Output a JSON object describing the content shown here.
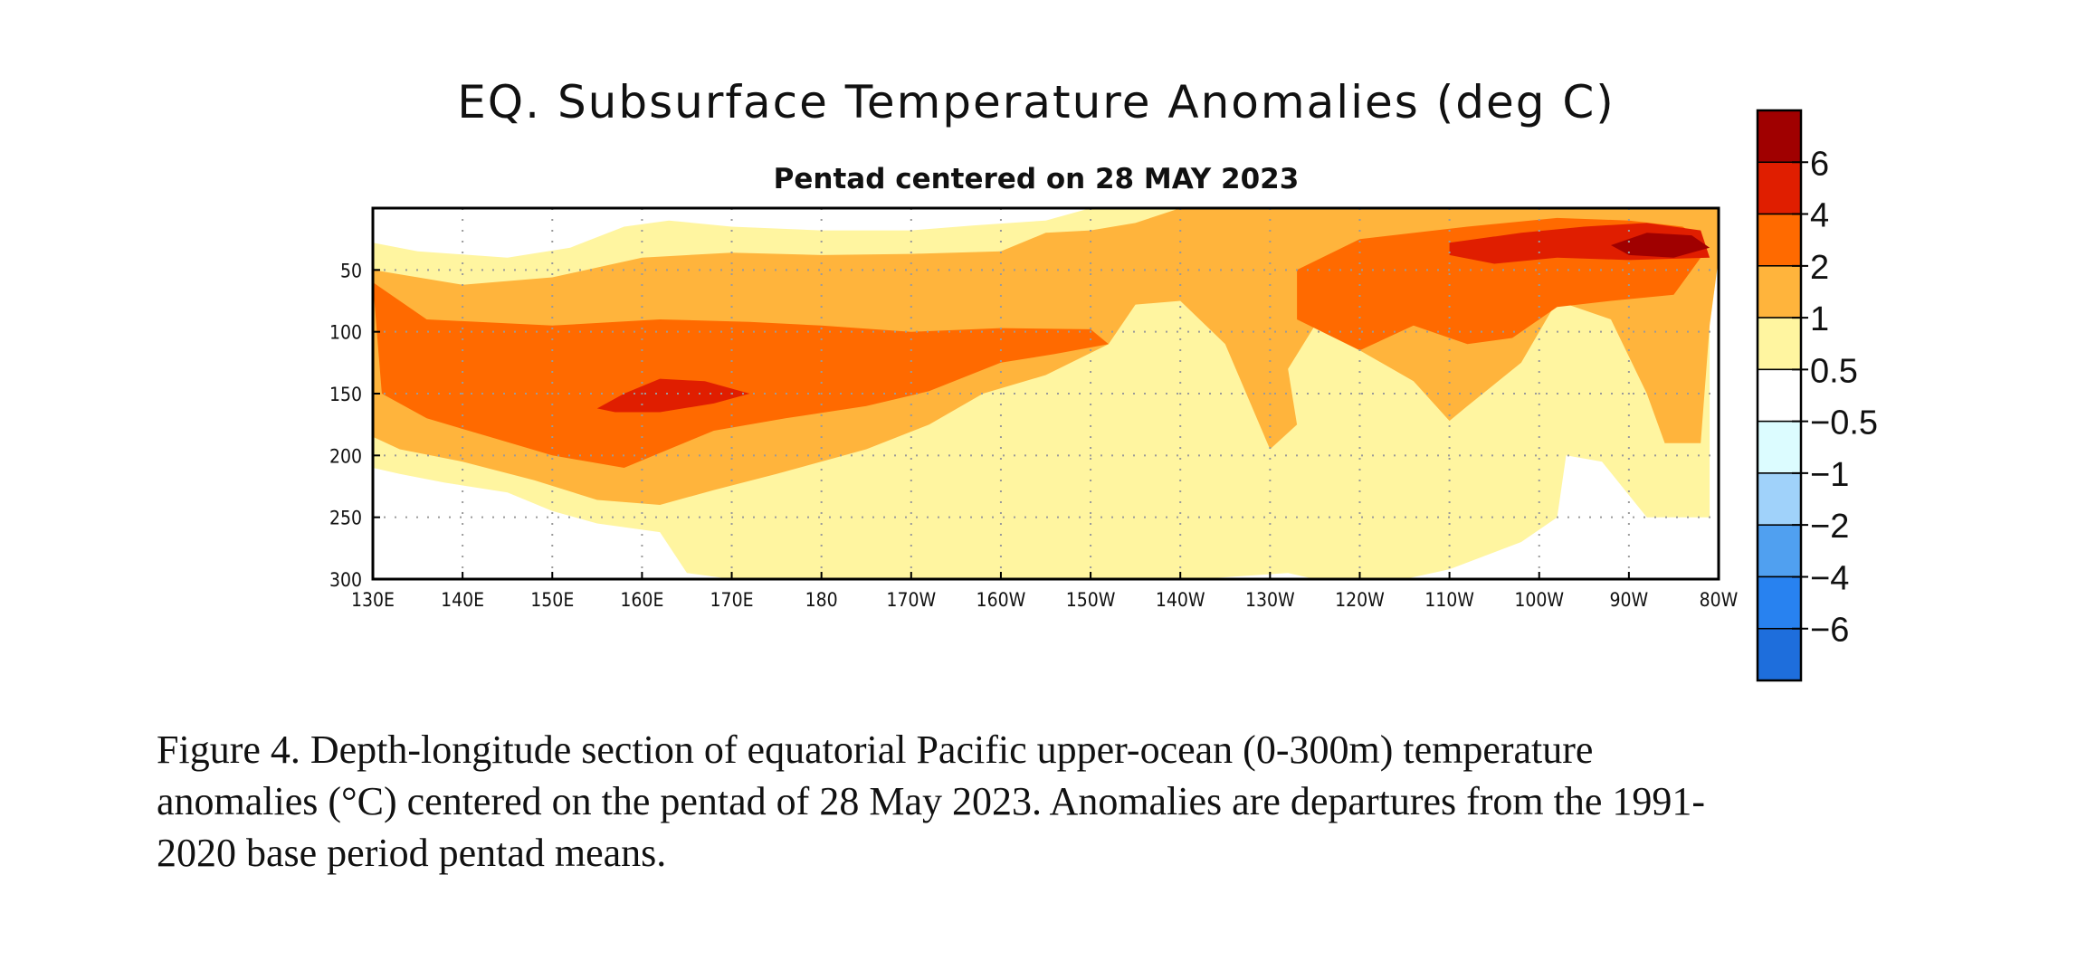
{
  "chart_data": {
    "type": "heatmap",
    "title": "EQ. Subsurface Temperature Anomalies (deg C)",
    "subtitle": "Pentad centered on 28 MAY 2023",
    "xlabel": "",
    "ylabel": "",
    "x_ticks": [
      "130E",
      "140E",
      "150E",
      "160E",
      "170E",
      "180",
      "170W",
      "160W",
      "150W",
      "140W",
      "130W",
      "120W",
      "110W",
      "100W",
      "90W",
      "80W"
    ],
    "x_values": [
      130,
      140,
      150,
      160,
      170,
      180,
      190,
      200,
      210,
      220,
      230,
      240,
      250,
      260,
      270,
      280
    ],
    "xlim": [
      130,
      280
    ],
    "y_ticks": [
      "50",
      "100",
      "150",
      "200",
      "250",
      "300"
    ],
    "y_values": [
      50,
      100,
      150,
      200,
      250,
      300
    ],
    "ylim": [
      0,
      300
    ],
    "y_inverted": true,
    "grid": true,
    "colorbar": {
      "labels": [
        "6",
        "4",
        "2",
        "1",
        "0.5",
        "−0.5",
        "−1",
        "−2",
        "−4",
        "−6"
      ],
      "colors": [
        "#a00000",
        "#e01e00",
        "#ff6a00",
        "#ffb43c",
        "#fff5a0",
        "#ffffff",
        "#dcfcff",
        "#a0d2fa",
        "#50a0f0",
        "#2882f0",
        "#1e6edc"
      ]
    },
    "anomaly_field": {
      "note": "approximate contour regions (longitude deg E, depth m) with anomaly class",
      "regions": [
        {
          "class": "0.5-1",
          "color": "#fff5a0",
          "polygon": [
            [
              130,
              28
            ],
            [
              135,
              35
            ],
            [
              145,
              40
            ],
            [
              152,
              32
            ],
            [
              158,
              15
            ],
            [
              163,
              10
            ],
            [
              170,
              15
            ],
            [
              180,
              18
            ],
            [
              190,
              18
            ],
            [
              197,
              14
            ],
            [
              205,
              10
            ],
            [
              210,
              0
            ],
            [
              220,
              0
            ],
            [
              280,
              0
            ],
            [
              280,
              40
            ],
            [
              279,
              95
            ],
            [
              279,
              170
            ],
            [
              279,
              250
            ],
            [
              272,
              250
            ],
            [
              267,
              205
            ],
            [
              263,
              200
            ],
            [
              262,
              250
            ],
            [
              258,
              270
            ],
            [
              250,
              292
            ],
            [
              245,
              300
            ],
            [
              235,
              300
            ],
            [
              232,
              295
            ],
            [
              222,
              300
            ],
            [
              210,
              300
            ],
            [
              200,
              300
            ],
            [
              180,
              300
            ],
            [
              170,
              300
            ],
            [
              165,
              295
            ],
            [
              162,
              262
            ],
            [
              155,
              255
            ],
            [
              150,
              245
            ],
            [
              145,
              230
            ],
            [
              138,
              222
            ],
            [
              133,
              215
            ],
            [
              130,
              210
            ]
          ]
        },
        {
          "class": "1-2",
          "color": "#ffb43c",
          "polygon": [
            [
              130,
              50
            ],
            [
              140,
              62
            ],
            [
              150,
              56
            ],
            [
              160,
              40
            ],
            [
              170,
              36
            ],
            [
              180,
              38
            ],
            [
              190,
              37
            ],
            [
              200,
              35
            ],
            [
              205,
              20
            ],
            [
              210,
              18
            ],
            [
              215,
              12
            ],
            [
              220,
              0
            ],
            [
              240,
              0
            ],
            [
              252,
              0
            ],
            [
              268,
              0
            ],
            [
              275,
              0
            ],
            [
              280,
              0
            ],
            [
              280,
              40
            ],
            [
              279,
              95
            ],
            [
              278,
              190
            ],
            [
              274,
              190
            ],
            [
              272,
              150
            ],
            [
              268,
              90
            ],
            [
              262,
              75
            ],
            [
              258,
              125
            ],
            [
              252,
              160
            ],
            [
              250,
              172
            ],
            [
              246,
              140
            ],
            [
              240,
              115
            ],
            [
              235,
              95
            ],
            [
              232,
              130
            ],
            [
              233,
              175
            ],
            [
              230,
              195
            ],
            [
              225,
              110
            ],
            [
              220,
              75
            ],
            [
              215,
              78
            ],
            [
              212,
              110
            ],
            [
              205,
              135
            ],
            [
              198,
              150
            ],
            [
              192,
              175
            ],
            [
              185,
              195
            ],
            [
              175,
              215
            ],
            [
              168,
              228
            ],
            [
              162,
              240
            ],
            [
              155,
              236
            ],
            [
              148,
              220
            ],
            [
              140,
              205
            ],
            [
              133,
              195
            ],
            [
              130,
              185
            ]
          ]
        },
        {
          "class": "2-4",
          "color": "#ff6a00",
          "polygon": [
            [
              130,
              60
            ],
            [
              136,
              90
            ],
            [
              150,
              95
            ],
            [
              162,
              90
            ],
            [
              172,
              92
            ],
            [
              180,
              95
            ],
            [
              190,
              100
            ],
            [
              200,
              97
            ],
            [
              210,
              98
            ],
            [
              212,
              110
            ],
            [
              206,
              118
            ],
            [
              200,
              125
            ],
            [
              192,
              148
            ],
            [
              185,
              160
            ],
            [
              176,
              170
            ],
            [
              168,
              180
            ],
            [
              163,
              195
            ],
            [
              158,
              210
            ],
            [
              150,
              200
            ],
            [
              143,
              185
            ],
            [
              136,
              170
            ],
            [
              131,
              150
            ]
          ]
        },
        {
          "class": "2-4",
          "color": "#ff6a00",
          "polygon": [
            [
              233,
              50
            ],
            [
              240,
              25
            ],
            [
              252,
              15
            ],
            [
              262,
              8
            ],
            [
              270,
              10
            ],
            [
              276,
              15
            ],
            [
              278,
              25
            ],
            [
              278,
              40
            ],
            [
              275,
              70
            ],
            [
              268,
              75
            ],
            [
              262,
              80
            ],
            [
              257,
              105
            ],
            [
              252,
              110
            ],
            [
              246,
              95
            ],
            [
              240,
              115
            ],
            [
              233,
              90
            ]
          ]
        },
        {
          "class": "4-6",
          "color": "#e01e00",
          "polygon": [
            [
              155,
              162
            ],
            [
              158,
              150
            ],
            [
              162,
              138
            ],
            [
              167,
              140
            ],
            [
              172,
              150
            ],
            [
              168,
              158
            ],
            [
              162,
              165
            ],
            [
              157,
              165
            ]
          ]
        },
        {
          "class": "4-6",
          "color": "#e01e00",
          "polygon": [
            [
              250,
              28
            ],
            [
              258,
              20
            ],
            [
              265,
              15
            ],
            [
              272,
              12
            ],
            [
              278,
              18
            ],
            [
              279,
              40
            ],
            [
              270,
              42
            ],
            [
              262,
              40
            ],
            [
              255,
              45
            ],
            [
              250,
              38
            ]
          ]
        },
        {
          "class": ">6",
          "color": "#a00000",
          "polygon": [
            [
              268,
              30
            ],
            [
              272,
              20
            ],
            [
              277,
              22
            ],
            [
              279,
              32
            ],
            [
              275,
              40
            ],
            [
              270,
              38
            ]
          ]
        }
      ]
    }
  },
  "caption": {
    "line1": "Figure 4. Depth-longitude section of equatorial Pacific upper-ocean (0-300m) temperature",
    "line2": "anomalies (°C) centered on the pentad of 28 May 2023. Anomalies are departures from the 1991-",
    "line3": "2020 base period pentad means."
  }
}
